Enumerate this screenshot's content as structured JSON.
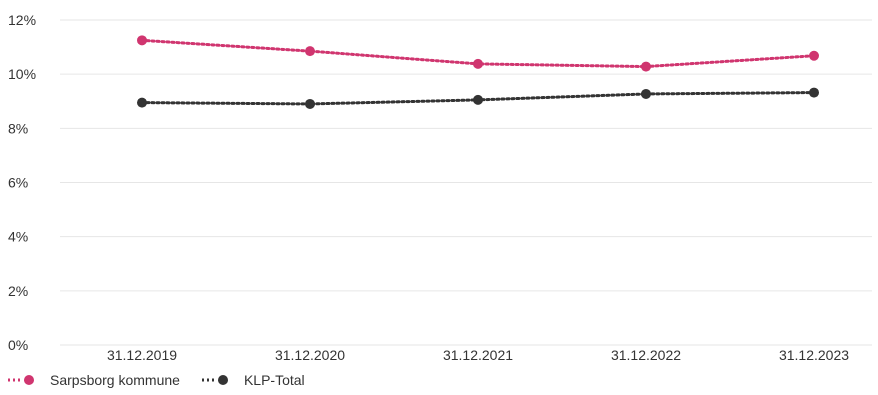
{
  "chart_data": {
    "type": "line",
    "categories": [
      "31.12.2019",
      "31.12.2020",
      "31.12.2021",
      "31.12.2022",
      "31.12.2023"
    ],
    "series": [
      {
        "name": "Sarpsborg kommune",
        "values": [
          11.25,
          10.85,
          10.38,
          10.28,
          10.68
        ],
        "color": "#d0356f"
      },
      {
        "name": "KLP-Total",
        "values": [
          8.95,
          8.9,
          9.05,
          9.27,
          9.32
        ],
        "color": "#333333"
      }
    ],
    "ylim": [
      0,
      12
    ],
    "yticks": [
      0,
      2,
      4,
      6,
      8,
      10,
      12
    ],
    "ytick_labels": [
      "0%",
      "2%",
      "4%",
      "6%",
      "8%",
      "10%",
      "12%"
    ],
    "grid": true,
    "line_style": "dotted",
    "legend_position": "bottom-left",
    "title": "",
    "xlabel": "",
    "ylabel": ""
  }
}
